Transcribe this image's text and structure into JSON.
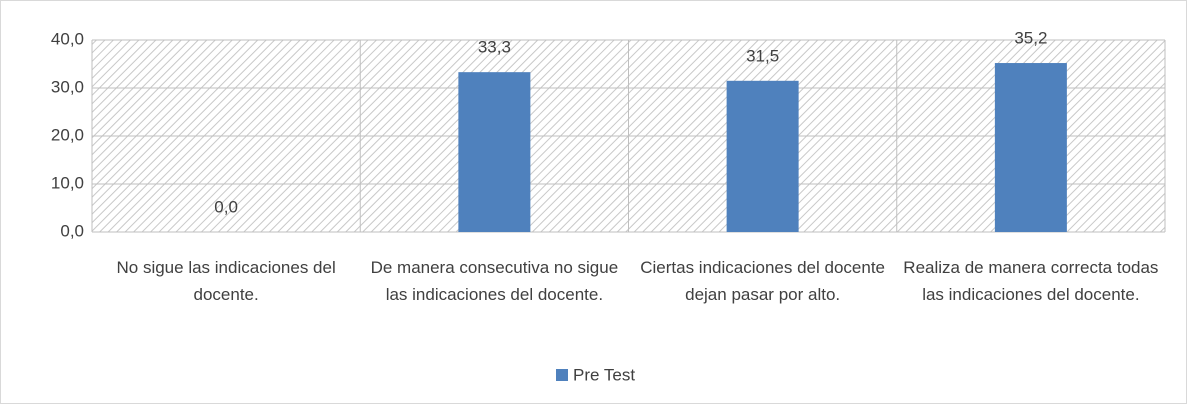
{
  "chart_data": {
    "type": "bar",
    "categories": [
      "No sigue las indicaciones del docente.",
      "De manera consecutiva no sigue las indicaciones del docente.",
      "Ciertas indicaciones del docente dejan pasar por alto.",
      "Realiza de manera correcta todas las indicaciones del docente."
    ],
    "series": [
      {
        "name": "Pre Test",
        "color": "#4f81bd",
        "values": [
          0,
          33.3,
          31.5,
          35.2
        ],
        "value_labels": [
          "0,0",
          "33,3",
          "31,5",
          "35,2"
        ]
      }
    ],
    "ylim": [
      0,
      40
    ],
    "yticks": [
      {
        "value": 0,
        "label": "0,0"
      },
      {
        "value": 10,
        "label": "10,0"
      },
      {
        "value": 20,
        "label": "20,0"
      },
      {
        "value": 30,
        "label": "30,0"
      },
      {
        "value": 40,
        "label": "40,0"
      }
    ],
    "grid": true,
    "legend": "bottom"
  }
}
